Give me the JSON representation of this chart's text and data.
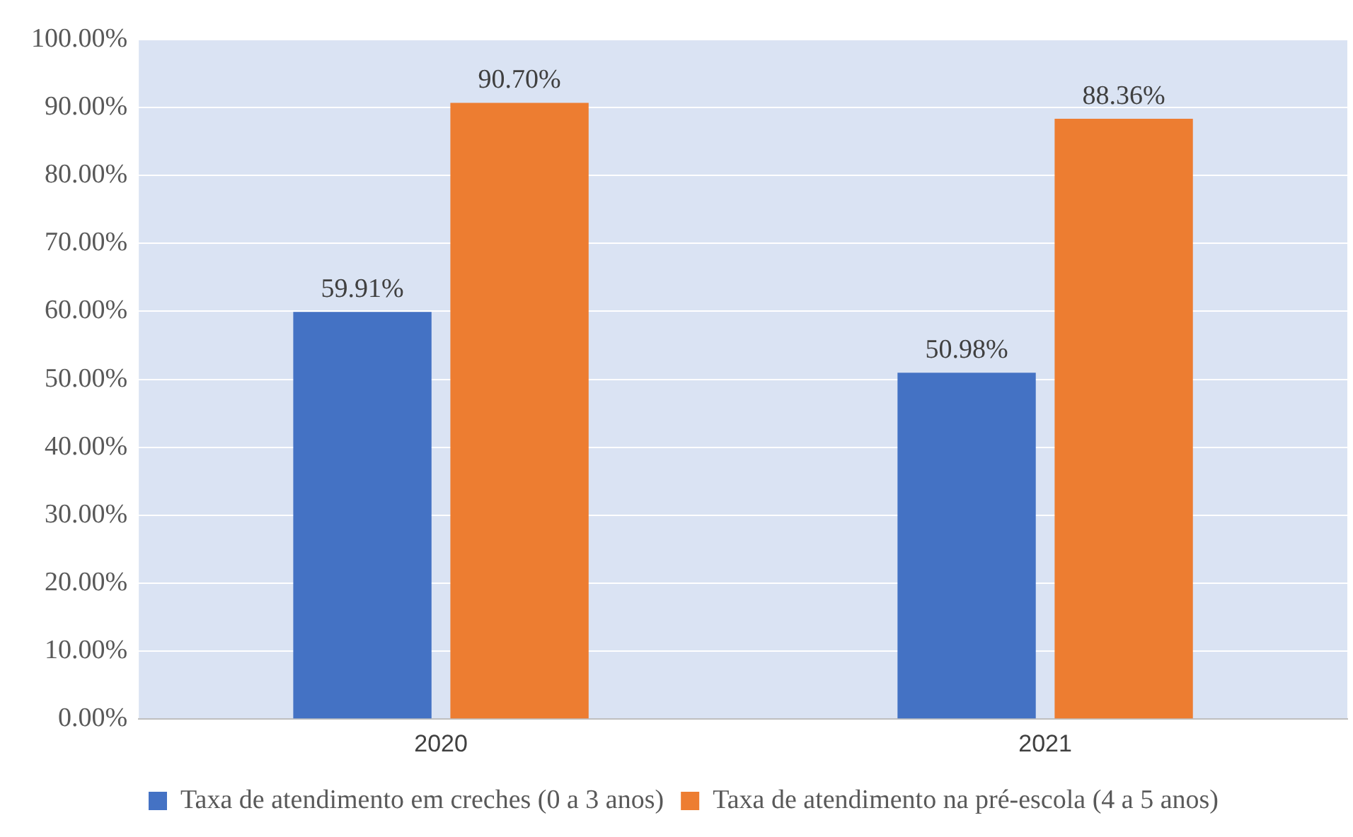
{
  "chart_data": {
    "type": "bar",
    "categories": [
      "2020",
      "2021"
    ],
    "series": [
      {
        "name": "Taxa de atendimento em creches (0 a 3 anos)",
        "color": "#4472c4",
        "values": [
          59.91,
          50.98
        ],
        "value_labels": [
          "59.91%",
          "50.98%"
        ]
      },
      {
        "name": "Taxa de atendimento na pré-escola (4 a 5 anos)",
        "color": "#ed7d31",
        "values": [
          90.7,
          88.36
        ],
        "value_labels": [
          "90.70%",
          "88.36%"
        ]
      }
    ],
    "ylim": [
      0,
      100
    ],
    "yticks": [
      {
        "value": 0,
        "label": "0.00%"
      },
      {
        "value": 10,
        "label": "10.00%"
      },
      {
        "value": 20,
        "label": "20.00%"
      },
      {
        "value": 30,
        "label": "30.00%"
      },
      {
        "value": 40,
        "label": "40.00%"
      },
      {
        "value": 50,
        "label": "50.00%"
      },
      {
        "value": 60,
        "label": "60.00%"
      },
      {
        "value": 70,
        "label": "70.00%"
      },
      {
        "value": 80,
        "label": "80.00%"
      },
      {
        "value": 90,
        "label": "90.00%"
      },
      {
        "value": 100,
        "label": "100.00%"
      }
    ],
    "grid": "y",
    "legend": "bottom"
  }
}
